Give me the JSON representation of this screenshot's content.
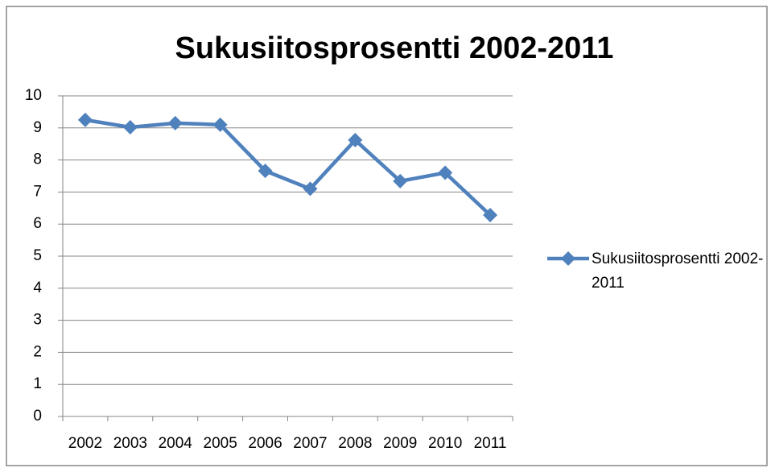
{
  "chart_data": {
    "type": "line",
    "title": "Sukusiitosprosentti 2002-2011",
    "categories": [
      "2002",
      "2003",
      "2004",
      "2005",
      "2006",
      "2007",
      "2008",
      "2009",
      "2010",
      "2011"
    ],
    "series": [
      {
        "name": "Sukusiitosprosentti 2002-2011",
        "color": "#4f81bd",
        "values": [
          9.25,
          9.02,
          9.15,
          9.1,
          7.66,
          7.1,
          8.62,
          7.34,
          7.6,
          6.28
        ]
      }
    ],
    "ylim": [
      0,
      10
    ],
    "yticks": [
      0,
      1,
      2,
      3,
      4,
      5,
      6,
      7,
      8,
      9,
      10
    ],
    "grid": true,
    "legend": "right"
  }
}
